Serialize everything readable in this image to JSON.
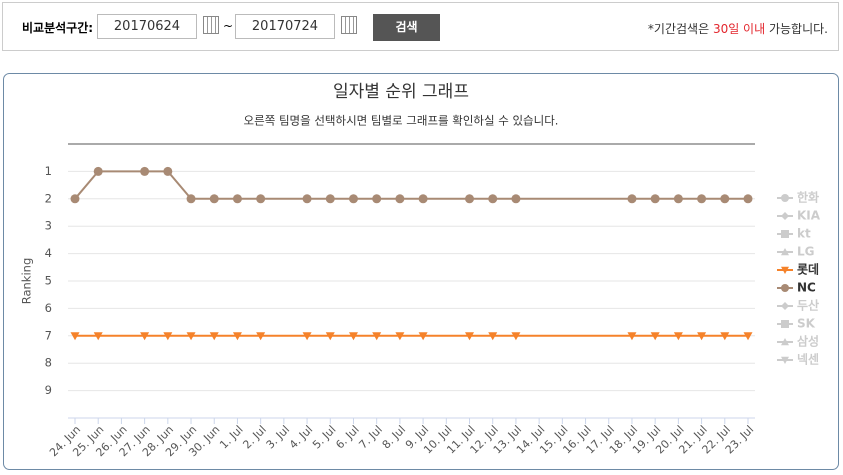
{
  "form": {
    "label": "비교분석구간:",
    "start": "20170624",
    "separator": "~",
    "end": "20170724",
    "button": "검색",
    "notice": {
      "before": "*기간검색은 ",
      "highlight": "30일 이내",
      "after": " 가능합니다."
    }
  },
  "chart_data": {
    "type": "line",
    "title": "일자별 순위 그래프",
    "subtitle": "오른쪽 팀명을 선택하시면 팀별로 그래프를 확인하실 수 있습니다.",
    "y_label": "Ranking",
    "ylim": [
      0,
      10
    ],
    "y_inverted": true,
    "yticks": [
      1,
      2,
      3,
      4,
      5,
      6,
      7,
      8,
      9
    ],
    "grid": true,
    "legend": "right",
    "connect_nulls": true,
    "categories": [
      "24. Jun",
      "25. Jun",
      "26. Jun",
      "27. Jun",
      "28. Jun",
      "29. Jun",
      "30. Jun",
      "1. Jul",
      "2. Jul",
      "3. Jul",
      "4. Jul",
      "5. Jul",
      "6. Jul",
      "7. Jul",
      "8. Jul",
      "9. Jul",
      "10. Jul",
      "11. Jul",
      "12. Jul",
      "13. Jul",
      "14. Jul",
      "15. Jul",
      "16. Jul",
      "17. Jul",
      "18. Jul",
      "19. Jul",
      "20. Jul",
      "21. Jul",
      "22. Jul",
      "23. Jul"
    ],
    "series": [
      {
        "name": "한화",
        "color": "#cccccc",
        "marker": "circle"
      },
      {
        "name": "KIA",
        "color": "#cccccc",
        "marker": "diamond"
      },
      {
        "name": "kt",
        "color": "#cccccc",
        "marker": "square"
      },
      {
        "name": "LG",
        "color": "#cccccc",
        "marker": "triangle"
      },
      {
        "name": "롯데",
        "color": "#f5822a",
        "marker": "triangle-down",
        "values": [
          7,
          7,
          null,
          7,
          7,
          7,
          7,
          7,
          7,
          null,
          7,
          7,
          7,
          7,
          7,
          7,
          null,
          7,
          7,
          7,
          null,
          null,
          null,
          null,
          7,
          7,
          7,
          7,
          7,
          7
        ]
      },
      {
        "name": "NC",
        "color": "#a88a74",
        "marker": "circle",
        "values": [
          2,
          1,
          null,
          1,
          1,
          2,
          2,
          2,
          2,
          null,
          2,
          2,
          2,
          2,
          2,
          2,
          null,
          2,
          2,
          2,
          null,
          null,
          null,
          null,
          2,
          2,
          2,
          2,
          2,
          2
        ]
      },
      {
        "name": "두산",
        "color": "#cccccc",
        "marker": "diamond"
      },
      {
        "name": "SK",
        "color": "#cccccc",
        "marker": "square"
      },
      {
        "name": "삼성",
        "color": "#cccccc",
        "marker": "triangle"
      },
      {
        "name": "넥센",
        "color": "#cccccc",
        "marker": "triangle-down"
      }
    ]
  }
}
